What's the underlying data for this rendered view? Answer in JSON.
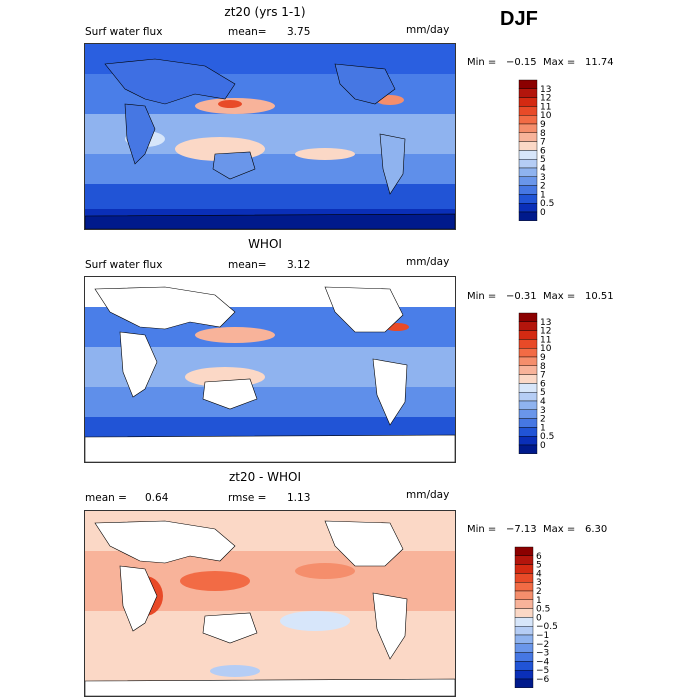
{
  "season": "DJF",
  "panels": [
    {
      "title": "zt20 (yrs 1-1)",
      "left_label": "Surf water flux",
      "mid_label": "mean=",
      "mid_value": "3.75",
      "units": "mm/day",
      "min_label": "Min =",
      "min_value": "−0.15",
      "max_label": "Max =",
      "max_value": "11.74",
      "legend": [
        "13",
        "12",
        "11",
        "10",
        "9",
        "8",
        "7",
        "6",
        "5",
        "4",
        "3",
        "2",
        "1",
        "0.5",
        "0"
      ],
      "colors": [
        "#8b0000",
        "#b3150c",
        "#d42a12",
        "#e84a28",
        "#f26b45",
        "#f58e6c",
        "#f8b39a",
        "#fbd8c6",
        "#d7e6fa",
        "#b5cdf5",
        "#8fb3ef",
        "#6a96ea",
        "#4677e3",
        "#2154d6",
        "#0a2fb8",
        "#001a8c"
      ]
    },
    {
      "title": "WHOI",
      "left_label": "Surf water flux",
      "mid_label": "mean=",
      "mid_value": "3.12",
      "units": "mm/day",
      "min_label": "Min =",
      "min_value": "−0.31",
      "max_label": "Max =",
      "max_value": "10.51",
      "legend": [
        "13",
        "12",
        "11",
        "10",
        "9",
        "8",
        "7",
        "6",
        "5",
        "4",
        "3",
        "2",
        "1",
        "0.5",
        "0"
      ],
      "colors": [
        "#8b0000",
        "#b3150c",
        "#d42a12",
        "#e84a28",
        "#f26b45",
        "#f58e6c",
        "#f8b39a",
        "#fbd8c6",
        "#d7e6fa",
        "#b5cdf5",
        "#8fb3ef",
        "#6a96ea",
        "#4677e3",
        "#2154d6",
        "#0a2fb8",
        "#001a8c"
      ]
    },
    {
      "title": "zt20 - WHOI",
      "left_label": "mean =",
      "left_value": "0.64",
      "mid_label": "rmse =",
      "mid_value": "1.13",
      "units": "mm/day",
      "min_label": "Min =",
      "min_value": "−7.13",
      "max_label": "Max =",
      "max_value": "6.30",
      "legend": [
        "6",
        "5",
        "4",
        "3",
        "2",
        "1",
        "0.5",
        "0",
        "−0.5",
        "−1",
        "−2",
        "−3",
        "−4",
        "−5",
        "−6"
      ],
      "colors": [
        "#8b0000",
        "#b3150c",
        "#d42a12",
        "#e84a28",
        "#f26b45",
        "#f58e6c",
        "#f8b39a",
        "#fbd8c6",
        "#d7e6fa",
        "#b5cdf5",
        "#8fb3ef",
        "#6a96ea",
        "#4677e3",
        "#2154d6",
        "#0a2fb8",
        "#001a8c"
      ]
    }
  ],
  "chart_data": [
    {
      "type": "heatmap",
      "title": "zt20 (yrs 1-1)",
      "variable": "Surf water flux",
      "units": "mm/day",
      "mean": 3.75,
      "min": -0.15,
      "max": 11.74,
      "levels": [
        0,
        0.5,
        1,
        2,
        3,
        4,
        5,
        6,
        7,
        8,
        9,
        10,
        11,
        12,
        13
      ],
      "grid": false
    },
    {
      "type": "heatmap",
      "title": "WHOI",
      "variable": "Surf water flux",
      "units": "mm/day",
      "mean": 3.12,
      "min": -0.31,
      "max": 10.51,
      "levels": [
        0,
        0.5,
        1,
        2,
        3,
        4,
        5,
        6,
        7,
        8,
        9,
        10,
        11,
        12,
        13
      ],
      "grid": false
    },
    {
      "type": "heatmap",
      "title": "zt20 - WHOI",
      "units": "mm/day",
      "mean": 0.64,
      "rmse": 1.13,
      "min": -7.13,
      "max": 6.3,
      "levels": [
        -6,
        -5,
        -4,
        -3,
        -2,
        -1,
        -0.5,
        0,
        0.5,
        1,
        2,
        3,
        4,
        5,
        6
      ],
      "grid": false
    }
  ]
}
